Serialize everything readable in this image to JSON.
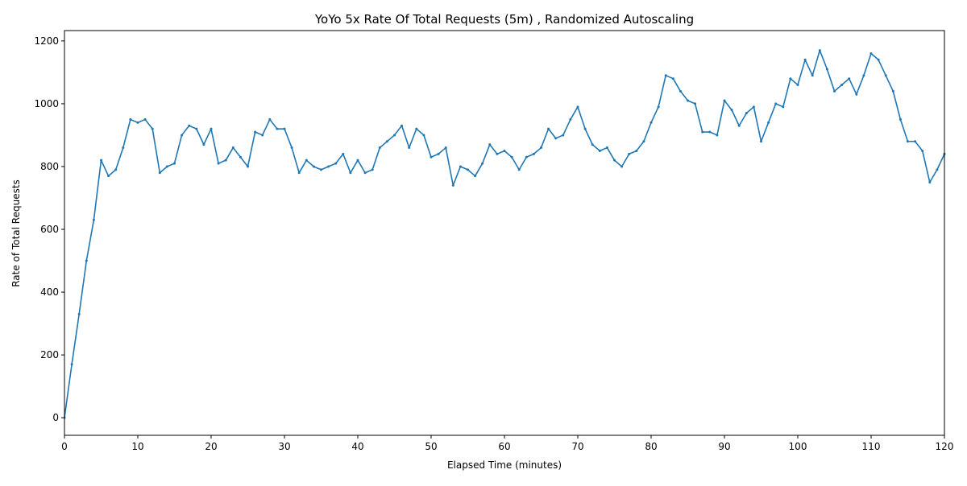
{
  "chart_data": {
    "type": "line",
    "title": "YoYo 5x Rate Of Total Requests (5m) , Randomized Autoscaling",
    "xlabel": "Elapsed Time (minutes)",
    "ylabel": "Rate of Total Requests",
    "x": [
      0,
      1,
      2,
      3,
      4,
      5,
      6,
      7,
      8,
      9,
      10,
      11,
      12,
      13,
      14,
      15,
      16,
      17,
      18,
      19,
      20,
      21,
      22,
      23,
      24,
      25,
      26,
      27,
      28,
      29,
      30,
      31,
      32,
      33,
      34,
      35,
      36,
      37,
      38,
      39,
      40,
      41,
      42,
      43,
      44,
      45,
      46,
      47,
      48,
      49,
      50,
      51,
      52,
      53,
      54,
      55,
      56,
      57,
      58,
      59,
      60,
      61,
      62,
      63,
      64,
      65,
      66,
      67,
      68,
      69,
      70,
      71,
      72,
      73,
      74,
      75,
      76,
      77,
      78,
      79,
      80,
      81,
      82,
      83,
      84,
      85,
      86,
      87,
      88,
      89,
      90,
      91,
      92,
      93,
      94,
      95,
      96,
      97,
      98,
      99,
      100,
      101,
      102,
      103,
      104,
      105,
      106,
      107,
      108,
      109,
      110,
      111,
      112,
      113,
      114,
      115,
      116,
      117,
      118,
      119,
      120
    ],
    "series": [
      {
        "color": "#1f77b4",
        "values": [
          0,
          170,
          330,
          500,
          630,
          820,
          770,
          790,
          860,
          950,
          940,
          950,
          920,
          780,
          800,
          810,
          900,
          930,
          920,
          870,
          920,
          810,
          820,
          860,
          830,
          800,
          910,
          900,
          950,
          920,
          920,
          860,
          780,
          820,
          800,
          790,
          800,
          810,
          840,
          780,
          820,
          780,
          790,
          860,
          880,
          900,
          930,
          860,
          920,
          900,
          830,
          840,
          860,
          740,
          800,
          790,
          770,
          810,
          870,
          840,
          850,
          830,
          790,
          830,
          840,
          860,
          920,
          890,
          900,
          950,
          990,
          920,
          870,
          850,
          860,
          820,
          800,
          840,
          850,
          880,
          940,
          990,
          1090,
          1080,
          1040,
          1010,
          1000,
          910,
          910,
          900,
          1010,
          980,
          930,
          970,
          990,
          880,
          940,
          1000,
          990,
          1080,
          1060,
          1140,
          1090,
          1170,
          1110,
          1040,
          1060,
          1080,
          1030,
          1090,
          1160,
          1140,
          1090,
          1040,
          950,
          880,
          880,
          850,
          750,
          790,
          840
        ]
      }
    ],
    "xlim": [
      0,
      120
    ],
    "ylim": [
      -56,
      1233
    ],
    "xticks": [
      0,
      10,
      20,
      30,
      40,
      50,
      60,
      70,
      80,
      90,
      100,
      110,
      120
    ],
    "yticks": [
      0,
      200,
      400,
      600,
      800,
      1000,
      1200
    ]
  }
}
